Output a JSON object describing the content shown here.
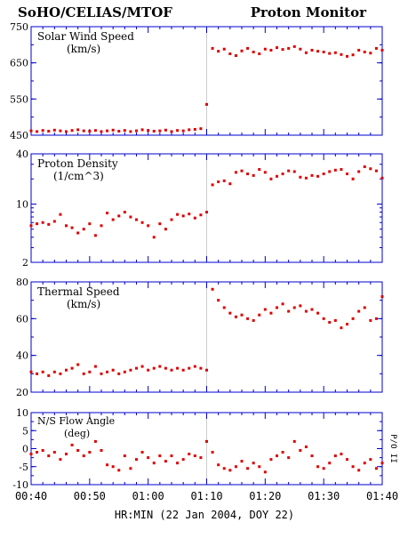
{
  "header": {
    "left": "SoHO/CELIAS/MTOF",
    "right": "Proton Monitor"
  },
  "x_axis": {
    "title": "HR:MIN (22 Jan 2004, DOY 22)",
    "ticks": [
      "00:40",
      "00:50",
      "01:00",
      "01:10",
      "01:20",
      "01:30",
      "01:40"
    ]
  },
  "side_label": "P/O II",
  "colors": {
    "data": "#dd0000",
    "axis": "#0000cc",
    "marker": "#cccccc",
    "text": "#000000"
  },
  "chart_data": [
    {
      "type": "scatter",
      "title": "Solar Wind Speed",
      "unit": "(km/s)",
      "ylim": [
        450,
        750
      ],
      "yscale": "linear",
      "yticks": [
        "750",
        "650",
        "550",
        "450"
      ],
      "x_range": [
        "00:40",
        "01:40"
      ],
      "x": [
        "00:40",
        "00:41",
        "00:42",
        "00:43",
        "00:44",
        "00:45",
        "00:46",
        "00:47",
        "00:48",
        "00:49",
        "00:50",
        "00:51",
        "00:52",
        "00:53",
        "00:54",
        "00:55",
        "00:56",
        "00:57",
        "00:58",
        "00:59",
        "01:00",
        "01:01",
        "01:02",
        "01:03",
        "01:04",
        "01:05",
        "01:06",
        "01:07",
        "01:08",
        "01:09",
        "01:10",
        "01:11",
        "01:12",
        "01:13",
        "01:14",
        "01:15",
        "01:16",
        "01:17",
        "01:18",
        "01:19",
        "01:20",
        "01:21",
        "01:22",
        "01:23",
        "01:24",
        "01:25",
        "01:26",
        "01:27",
        "01:28",
        "01:29",
        "01:30",
        "01:31",
        "01:32",
        "01:33",
        "01:34",
        "01:35",
        "01:36",
        "01:37",
        "01:38",
        "01:39",
        "01:40"
      ],
      "values": [
        462,
        460,
        463,
        461,
        464,
        462,
        460,
        463,
        465,
        462,
        461,
        463,
        460,
        462,
        464,
        461,
        463,
        460,
        462,
        465,
        463,
        461,
        462,
        464,
        460,
        463,
        462,
        465,
        466,
        468,
        535,
        690,
        682,
        688,
        675,
        670,
        683,
        690,
        680,
        675,
        688,
        685,
        692,
        687,
        690,
        695,
        688,
        678,
        685,
        682,
        680,
        676,
        678,
        673,
        668,
        672,
        685,
        680,
        677,
        690,
        685
      ]
    },
    {
      "type": "scatter",
      "title": "Proton Density",
      "unit": "(1/cm^3)",
      "ylim": [
        2,
        40
      ],
      "yscale": "log",
      "yticks": [
        "40",
        "10",
        "2"
      ],
      "x_range": [
        "00:40",
        "01:40"
      ],
      "x": [
        "00:40",
        "00:41",
        "00:42",
        "00:43",
        "00:44",
        "00:45",
        "00:46",
        "00:47",
        "00:48",
        "00:49",
        "00:50",
        "00:51",
        "00:52",
        "00:53",
        "00:54",
        "00:55",
        "00:56",
        "00:57",
        "00:58",
        "00:59",
        "01:00",
        "01:01",
        "01:02",
        "01:03",
        "01:04",
        "01:05",
        "01:06",
        "01:07",
        "01:08",
        "01:09",
        "01:10",
        "01:11",
        "01:12",
        "01:13",
        "01:14",
        "01:15",
        "01:16",
        "01:17",
        "01:18",
        "01:19",
        "01:20",
        "01:21",
        "01:22",
        "01:23",
        "01:24",
        "01:25",
        "01:26",
        "01:27",
        "01:28",
        "01:29",
        "01:30",
        "01:31",
        "01:32",
        "01:33",
        "01:34",
        "01:35",
        "01:36",
        "01:37",
        "01:38",
        "01:39",
        "01:40"
      ],
      "values": [
        5.5,
        5.8,
        6.0,
        5.7,
        6.2,
        7.5,
        5.5,
        5.2,
        4.5,
        5.0,
        5.8,
        4.2,
        5.5,
        7.8,
        6.5,
        7.2,
        8.0,
        7.0,
        6.5,
        6.0,
        5.5,
        4.0,
        5.8,
        5.0,
        6.5,
        7.5,
        7.2,
        7.6,
        6.8,
        7.4,
        8.0,
        17.0,
        18.5,
        19.0,
        17.5,
        24.0,
        25.0,
        23.0,
        22.0,
        26.0,
        24.0,
        20.0,
        21.5,
        23.0,
        25.0,
        24.5,
        21.0,
        20.5,
        22.0,
        21.5,
        23.0,
        24.5,
        25.5,
        26.0,
        23.0,
        20.0,
        24.5,
        28.0,
        26.5,
        25.0,
        20.5
      ]
    },
    {
      "type": "scatter",
      "title": "Thermal Speed",
      "unit": "(km/s)",
      "ylim": [
        20,
        80
      ],
      "yscale": "linear",
      "yticks": [
        "80",
        "60",
        "40",
        "20"
      ],
      "x_range": [
        "00:40",
        "01:40"
      ],
      "x": [
        "00:40",
        "00:41",
        "00:42",
        "00:43",
        "00:44",
        "00:45",
        "00:46",
        "00:47",
        "00:48",
        "00:49",
        "00:50",
        "00:51",
        "00:52",
        "00:53",
        "00:54",
        "00:55",
        "00:56",
        "00:57",
        "00:58",
        "00:59",
        "01:00",
        "01:01",
        "01:02",
        "01:03",
        "01:04",
        "01:05",
        "01:06",
        "01:07",
        "01:08",
        "01:09",
        "01:10",
        "01:11",
        "01:12",
        "01:13",
        "01:14",
        "01:15",
        "01:16",
        "01:17",
        "01:18",
        "01:19",
        "01:20",
        "01:21",
        "01:22",
        "01:23",
        "01:24",
        "01:25",
        "01:26",
        "01:27",
        "01:28",
        "01:29",
        "01:30",
        "01:31",
        "01:32",
        "01:33",
        "01:34",
        "01:35",
        "01:36",
        "01:37",
        "01:38",
        "01:39",
        "01:40"
      ],
      "values": [
        31,
        30,
        31,
        29,
        31,
        30,
        32,
        33,
        35,
        30,
        31,
        34,
        30,
        31,
        32,
        30,
        31,
        32,
        33,
        34,
        32,
        33,
        34,
        33,
        32,
        33,
        32,
        33,
        34,
        33,
        32,
        76,
        70,
        66,
        63,
        61,
        62,
        60,
        59,
        62,
        65,
        63,
        66,
        68,
        64,
        66,
        67,
        64,
        65,
        63,
        60,
        58,
        59,
        55,
        57,
        60,
        64,
        66,
        59,
        60,
        72
      ]
    },
    {
      "type": "scatter",
      "title": "N/S Flow Angle",
      "unit": "(deg)",
      "ylim": [
        -10,
        10
      ],
      "yscale": "linear",
      "yticks": [
        "10",
        "5",
        "0",
        "-5",
        "-10"
      ],
      "x_range": [
        "00:40",
        "01:40"
      ],
      "x": [
        "00:40",
        "00:41",
        "00:42",
        "00:43",
        "00:44",
        "00:45",
        "00:46",
        "00:47",
        "00:48",
        "00:49",
        "00:50",
        "00:51",
        "00:52",
        "00:53",
        "00:54",
        "00:55",
        "00:56",
        "00:57",
        "00:58",
        "00:59",
        "01:00",
        "01:01",
        "01:02",
        "01:03",
        "01:04",
        "01:05",
        "01:06",
        "01:07",
        "01:08",
        "01:09",
        "01:10",
        "01:11",
        "01:12",
        "01:13",
        "01:14",
        "01:15",
        "01:16",
        "01:17",
        "01:18",
        "01:19",
        "01:20",
        "01:21",
        "01:22",
        "01:23",
        "01:24",
        "01:25",
        "01:26",
        "01:27",
        "01:28",
        "01:29",
        "01:30",
        "01:31",
        "01:32",
        "01:33",
        "01:34",
        "01:35",
        "01:36",
        "01:37",
        "01:38",
        "01:39",
        "01:40"
      ],
      "values": [
        -1.5,
        -1.0,
        -0.5,
        -2.0,
        -1.0,
        -3.0,
        -1.5,
        1.0,
        -0.5,
        -2.0,
        -1.0,
        2.0,
        -0.5,
        -4.5,
        -5.0,
        -6.0,
        -2.0,
        -5.5,
        -3.0,
        -1.0,
        -2.5,
        -4.0,
        -2.0,
        -3.5,
        -2.0,
        -4.0,
        -3.0,
        -1.5,
        -2.0,
        -2.5,
        2.0,
        -1.0,
        -4.5,
        -5.5,
        -6.0,
        -5.0,
        -3.5,
        -5.5,
        -4.0,
        -5.0,
        -6.5,
        -3.0,
        -2.0,
        -1.0,
        -2.5,
        2.0,
        -0.5,
        0.5,
        -2.0,
        -5.0,
        -5.5,
        -4.0,
        -2.0,
        -1.5,
        -3.0,
        -5.0,
        -6.0,
        -4.0,
        -3.0,
        -5.5,
        -4.0
      ]
    }
  ]
}
